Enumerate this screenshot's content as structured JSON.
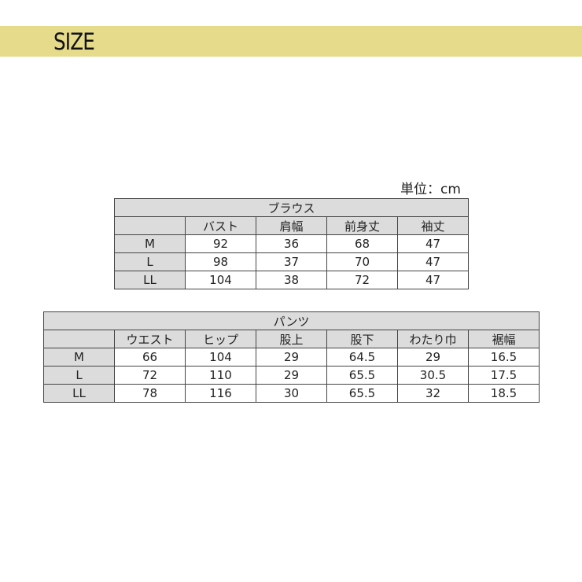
{
  "header": {
    "title": "SIZE",
    "color": "#e6db8a"
  },
  "unit": "単位：cm",
  "blouse": {
    "title": "ブラウス",
    "columns": [
      "バスト",
      "肩幅",
      "前身丈",
      "袖丈"
    ],
    "rows": [
      {
        "size": "M",
        "values": [
          "92",
          "36",
          "68",
          "47"
        ]
      },
      {
        "size": "L",
        "values": [
          "98",
          "37",
          "70",
          "47"
        ]
      },
      {
        "size": "LL",
        "values": [
          "104",
          "38",
          "72",
          "47"
        ]
      }
    ]
  },
  "pants": {
    "title": "パンツ",
    "columns": [
      "ウエスト",
      "ヒップ",
      "股上",
      "股下",
      "わたり巾",
      "裾幅"
    ],
    "rows": [
      {
        "size": "M",
        "values": [
          "66",
          "104",
          "29",
          "64.5",
          "29",
          "16.5"
        ]
      },
      {
        "size": "L",
        "values": [
          "72",
          "110",
          "29",
          "65.5",
          "30.5",
          "17.5"
        ]
      },
      {
        "size": "LL",
        "values": [
          "78",
          "116",
          "30",
          "65.5",
          "32",
          "18.5"
        ]
      }
    ]
  }
}
